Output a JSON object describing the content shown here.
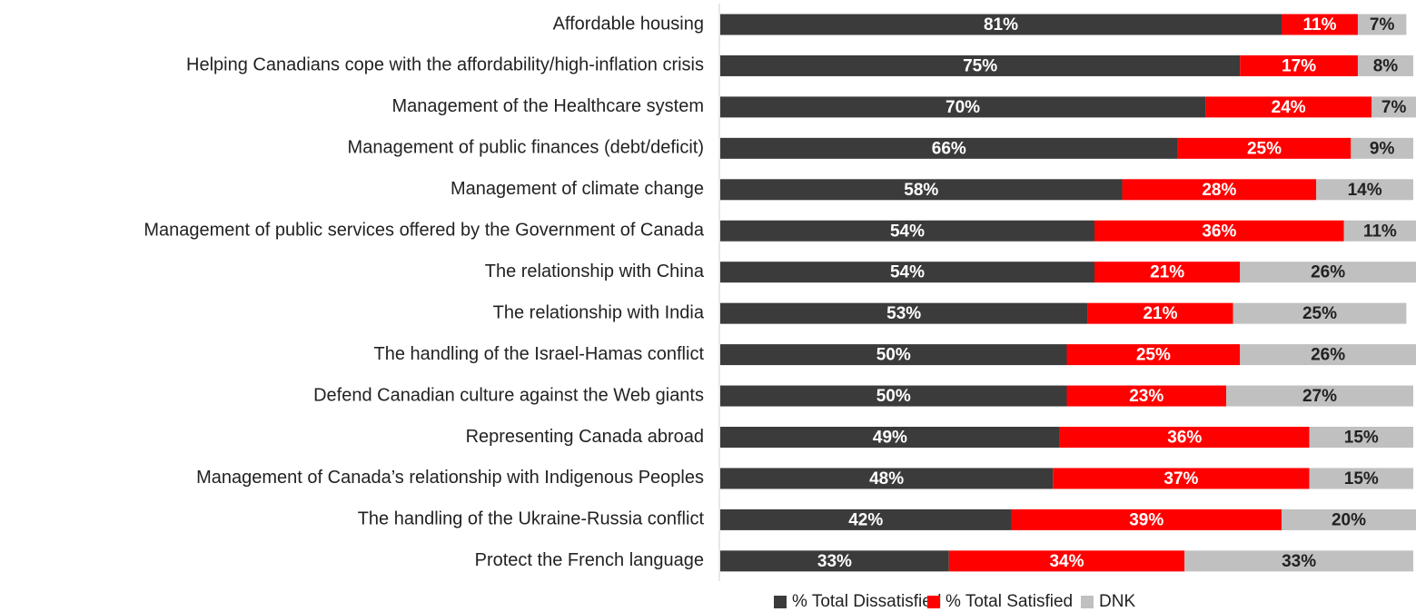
{
  "chart_data": {
    "type": "stacked-bar-horizontal",
    "categories": [
      "Affordable housing",
      "Helping Canadians cope with the affordability/high-inflation crisis",
      "Management of the Healthcare system",
      "Management of public finances (debt/deficit)",
      "Management of climate change",
      "Management of public services offered by the Government of Canada",
      "The relationship with China",
      "The relationship with India",
      "The handling of the Israel-Hamas conflict",
      "Defend Canadian culture against the Web giants",
      "Representing Canada abroad",
      "Management of Canada’s relationship with Indigenous Peoples",
      "The handling of the Ukraine-Russia conflict",
      "Protect the French language"
    ],
    "xlim": [
      0,
      100
    ],
    "legend": "bottom",
    "series": [
      {
        "name": "% Total Dissatisfied",
        "color": "#3b3b3b",
        "label_color": "#ffffff",
        "values": [
          81,
          75,
          70,
          66,
          58,
          54,
          54,
          53,
          50,
          50,
          49,
          48,
          42,
          33
        ],
        "value_labels": [
          "81%",
          "75%",
          "70%",
          "66%",
          "58%",
          "54%",
          "54%",
          "53%",
          "50%",
          "50%",
          "49%",
          "48%",
          "42%",
          "33%"
        ]
      },
      {
        "name": "% Total Satisfied",
        "color": "#ff0000",
        "label_color": "#ffffff",
        "values": [
          11,
          17,
          24,
          25,
          28,
          36,
          21,
          21,
          25,
          23,
          36,
          37,
          39,
          34
        ],
        "value_labels": [
          "11%",
          "17%",
          "24%",
          "25%",
          "28%",
          "36%",
          "21%",
          "21%",
          "25%",
          "23%",
          "36%",
          "37%",
          "39%",
          "34%"
        ]
      },
      {
        "name": "DNK",
        "color": "#c0c0c0",
        "label_color": "#222222",
        "values": [
          7,
          8,
          7,
          9,
          14,
          11,
          26,
          25,
          26,
          27,
          15,
          15,
          20,
          33
        ],
        "value_labels": [
          "7%",
          "8%",
          "7%",
          "9%",
          "14%",
          "11%",
          "26%",
          "25%",
          "26%",
          "27%",
          "15%",
          "15%",
          "20%",
          "33%"
        ]
      }
    ]
  }
}
